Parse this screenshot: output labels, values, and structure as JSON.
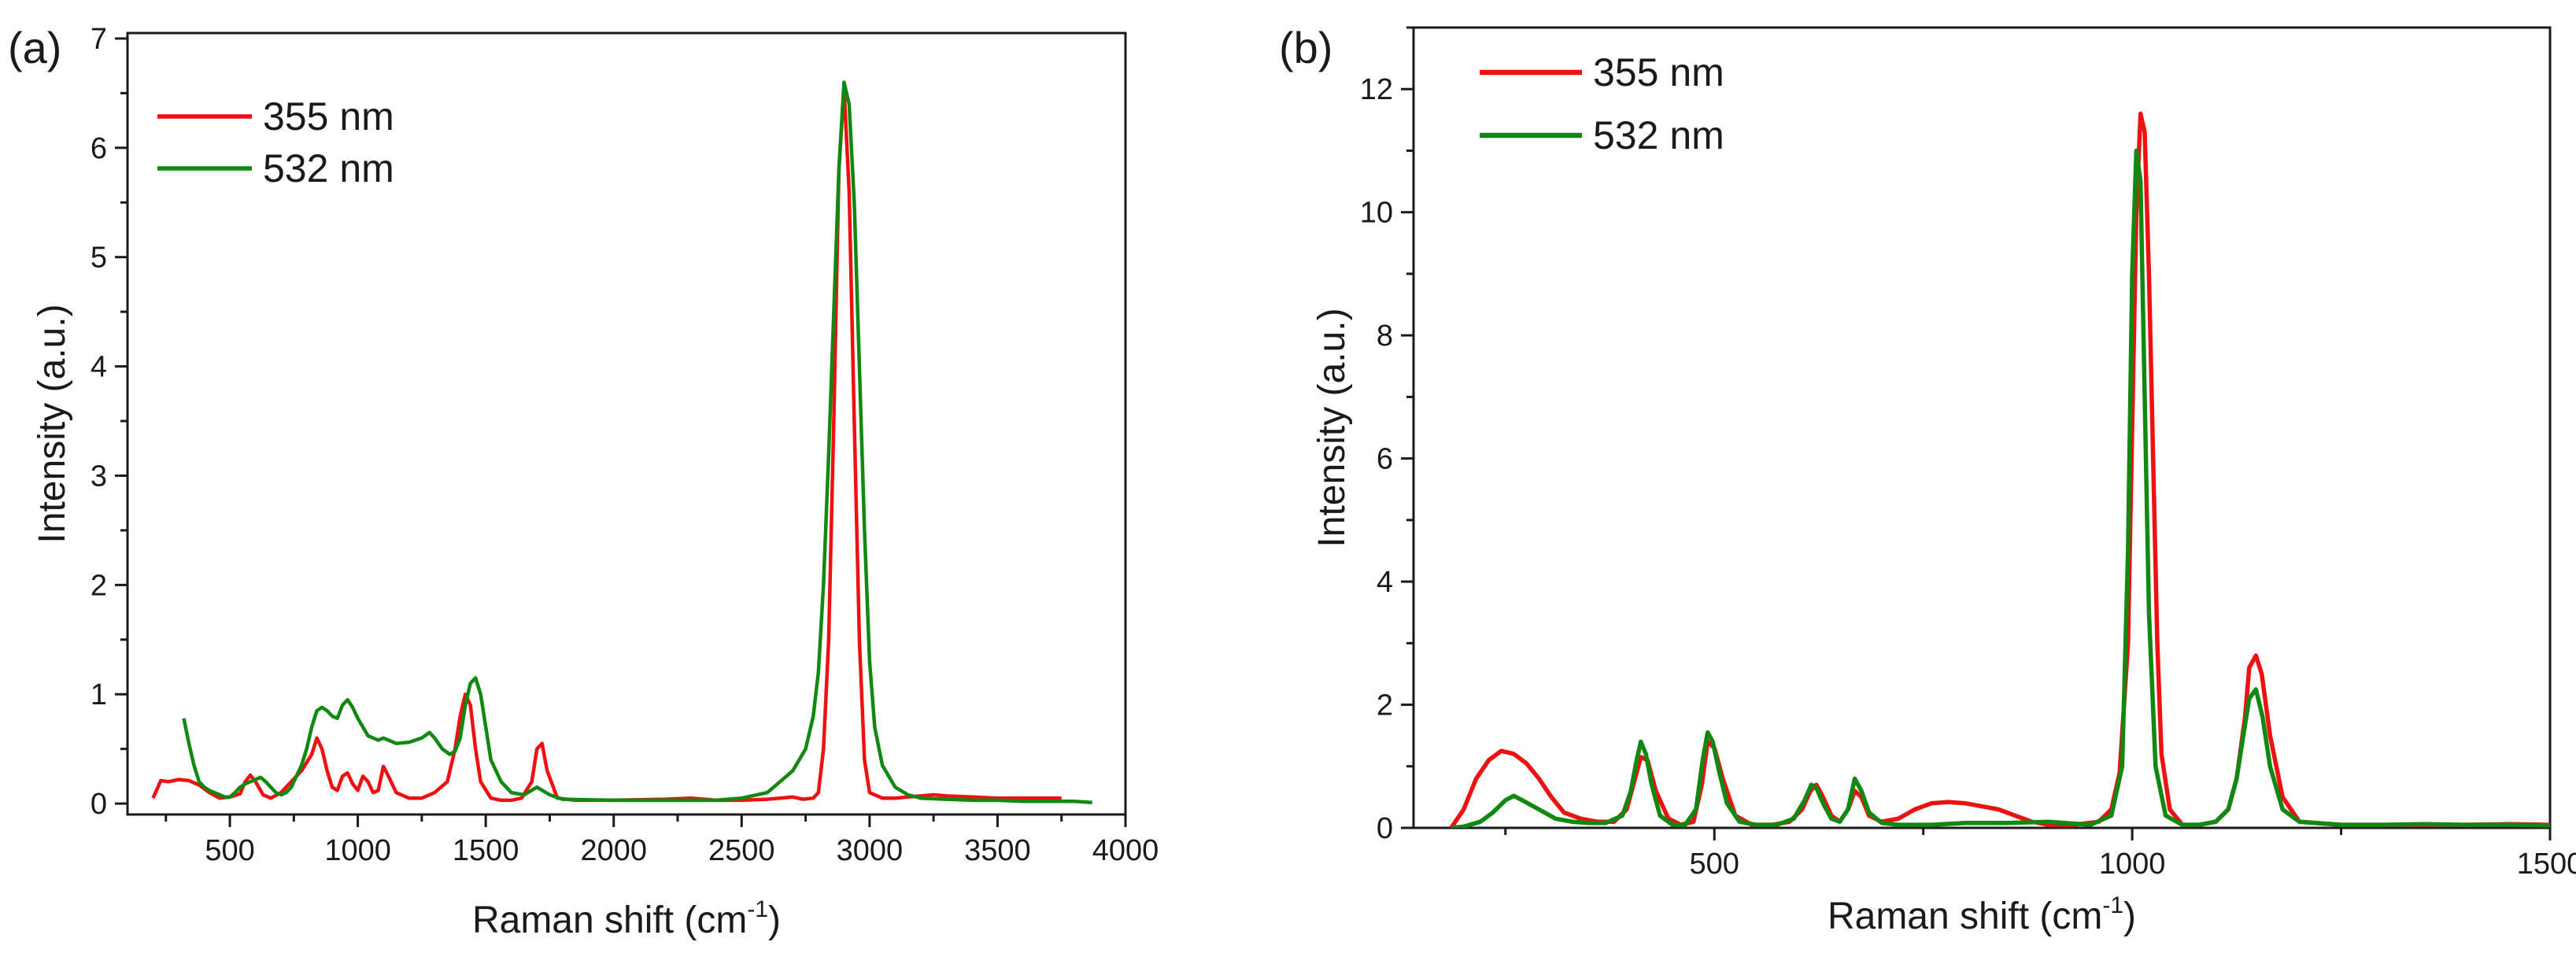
{
  "chart_data": [
    {
      "type": "line",
      "panel_label": "(a)",
      "xlabel": "Raman shift (cm",
      "xlabel_sup": "-1",
      "xlabel_close": ")",
      "ylabel": "Intensity (a.u.)",
      "xlim": [
        100,
        4000
      ],
      "ylim": [
        -0.1,
        7.05
      ],
      "xticks": [
        500,
        1000,
        1500,
        2000,
        2500,
        3000,
        3500,
        4000
      ],
      "yticks": [
        0,
        1,
        2,
        3,
        4,
        5,
        6,
        7
      ],
      "legend_position": "top-left",
      "series": [
        {
          "name": "355 nm",
          "color": "#ee1111",
          "x": [
            200,
            230,
            260,
            300,
            340,
            380,
            420,
            460,
            500,
            540,
            560,
            580,
            600,
            630,
            660,
            700,
            740,
            780,
            820,
            840,
            860,
            880,
            900,
            920,
            940,
            960,
            980,
            1000,
            1020,
            1040,
            1060,
            1080,
            1100,
            1120,
            1150,
            1200,
            1250,
            1300,
            1350,
            1380,
            1400,
            1420,
            1440,
            1460,
            1480,
            1520,
            1560,
            1600,
            1640,
            1680,
            1700,
            1720,
            1740,
            1780,
            1850,
            2000,
            2200,
            2300,
            2400,
            2500,
            2600,
            2650,
            2700,
            2740,
            2780,
            2800,
            2820,
            2840,
            2860,
            2880,
            2900,
            2920,
            2940,
            2960,
            2980,
            3000,
            3050,
            3100,
            3150,
            3200,
            3250,
            3300,
            3400,
            3500,
            3600,
            3700,
            3750
          ],
          "values": [
            0.05,
            0.21,
            0.2,
            0.22,
            0.21,
            0.17,
            0.1,
            0.05,
            0.06,
            0.09,
            0.2,
            0.26,
            0.2,
            0.08,
            0.05,
            0.1,
            0.2,
            0.3,
            0.45,
            0.6,
            0.5,
            0.3,
            0.15,
            0.12,
            0.25,
            0.28,
            0.18,
            0.12,
            0.25,
            0.2,
            0.1,
            0.12,
            0.34,
            0.25,
            0.1,
            0.05,
            0.05,
            0.1,
            0.2,
            0.5,
            0.8,
            1.0,
            0.9,
            0.5,
            0.2,
            0.05,
            0.03,
            0.03,
            0.05,
            0.2,
            0.5,
            0.55,
            0.3,
            0.05,
            0.03,
            0.03,
            0.04,
            0.05,
            0.03,
            0.03,
            0.04,
            0.05,
            0.06,
            0.04,
            0.05,
            0.1,
            0.5,
            1.5,
            3.5,
            5.8,
            6.55,
            5.6,
            3.5,
            1.5,
            0.4,
            0.1,
            0.05,
            0.05,
            0.06,
            0.07,
            0.08,
            0.07,
            0.06,
            0.05,
            0.05,
            0.05,
            0.05
          ]
        },
        {
          "name": "532 nm",
          "color": "#118811",
          "x": [
            320,
            340,
            360,
            380,
            400,
            420,
            440,
            460,
            480,
            500,
            520,
            540,
            560,
            580,
            600,
            620,
            640,
            660,
            680,
            700,
            720,
            740,
            760,
            780,
            800,
            820,
            840,
            860,
            880,
            900,
            920,
            940,
            960,
            980,
            1000,
            1020,
            1040,
            1060,
            1080,
            1100,
            1120,
            1150,
            1200,
            1250,
            1280,
            1300,
            1330,
            1360,
            1380,
            1400,
            1420,
            1440,
            1460,
            1480,
            1500,
            1520,
            1560,
            1600,
            1650,
            1700,
            1750,
            1800,
            2000,
            2200,
            2400,
            2500,
            2600,
            2650,
            2700,
            2750,
            2780,
            2800,
            2820,
            2840,
            2860,
            2880,
            2900,
            2920,
            2940,
            2960,
            2980,
            3000,
            3020,
            3050,
            3100,
            3150,
            3200,
            3300,
            3400,
            3500,
            3600,
            3700,
            3800,
            3870
          ],
          "values": [
            0.78,
            0.55,
            0.35,
            0.2,
            0.15,
            0.12,
            0.1,
            0.08,
            0.06,
            0.06,
            0.1,
            0.15,
            0.18,
            0.2,
            0.22,
            0.24,
            0.2,
            0.15,
            0.1,
            0.08,
            0.1,
            0.15,
            0.25,
            0.35,
            0.5,
            0.7,
            0.85,
            0.88,
            0.85,
            0.8,
            0.78,
            0.9,
            0.95,
            0.88,
            0.78,
            0.7,
            0.62,
            0.6,
            0.58,
            0.6,
            0.58,
            0.55,
            0.56,
            0.6,
            0.65,
            0.6,
            0.5,
            0.45,
            0.48,
            0.6,
            0.9,
            1.1,
            1.15,
            1.0,
            0.7,
            0.4,
            0.2,
            0.1,
            0.08,
            0.15,
            0.08,
            0.04,
            0.03,
            0.03,
            0.03,
            0.05,
            0.1,
            0.2,
            0.3,
            0.5,
            0.8,
            1.2,
            2.0,
            3.2,
            4.5,
            5.8,
            6.6,
            6.4,
            5.5,
            4.0,
            2.5,
            1.3,
            0.7,
            0.35,
            0.15,
            0.08,
            0.05,
            0.04,
            0.03,
            0.03,
            0.02,
            0.02,
            0.02,
            0.01
          ]
        }
      ]
    },
    {
      "type": "line",
      "panel_label": "(b)",
      "xlabel": "Raman shift (cm",
      "xlabel_sup": "-1",
      "xlabel_close": ")",
      "ylabel": "Intensity (a.u.)",
      "xlim": [
        140,
        1500
      ],
      "ylim": [
        0,
        13
      ],
      "xticks": [
        500,
        1000,
        1500
      ],
      "yticks": [
        0,
        2,
        4,
        6,
        8,
        10,
        12
      ],
      "legend_position": "top-left",
      "series": [
        {
          "name": "355 nm",
          "color": "#ee1111",
          "x": [
            185,
            200,
            215,
            230,
            245,
            260,
            275,
            290,
            305,
            320,
            340,
            360,
            380,
            395,
            405,
            412,
            420,
            430,
            445,
            460,
            475,
            485,
            492,
            500,
            510,
            525,
            545,
            570,
            590,
            605,
            615,
            622,
            630,
            640,
            650,
            660,
            668,
            676,
            685,
            700,
            720,
            740,
            760,
            780,
            800,
            820,
            840,
            860,
            880,
            900,
            930,
            960,
            975,
            985,
            995,
            1000,
            1005,
            1010,
            1015,
            1020,
            1025,
            1030,
            1035,
            1045,
            1060,
            1080,
            1100,
            1115,
            1125,
            1135,
            1140,
            1148,
            1155,
            1165,
            1180,
            1200,
            1250,
            1300,
            1350,
            1400,
            1450,
            1500
          ],
          "values": [
            0.0,
            0.3,
            0.8,
            1.1,
            1.25,
            1.2,
            1.05,
            0.8,
            0.5,
            0.25,
            0.15,
            0.1,
            0.1,
            0.3,
            0.8,
            1.15,
            1.1,
            0.6,
            0.15,
            0.05,
            0.1,
            0.7,
            1.4,
            1.3,
            0.8,
            0.2,
            0.05,
            0.05,
            0.1,
            0.3,
            0.6,
            0.7,
            0.5,
            0.2,
            0.1,
            0.3,
            0.6,
            0.5,
            0.2,
            0.1,
            0.15,
            0.3,
            0.4,
            0.42,
            0.4,
            0.35,
            0.3,
            0.2,
            0.1,
            0.05,
            0.05,
            0.1,
            0.3,
            0.9,
            3.0,
            6.5,
            10.0,
            11.6,
            11.3,
            9.0,
            6.0,
            3.0,
            1.2,
            0.3,
            0.05,
            0.05,
            0.1,
            0.3,
            0.8,
            1.8,
            2.6,
            2.8,
            2.5,
            1.5,
            0.5,
            0.1,
            0.05,
            0.05,
            0.05,
            0.05,
            0.06,
            0.05
          ]
        },
        {
          "name": "532 nm",
          "color": "#118811",
          "x": [
            185,
            200,
            220,
            235,
            250,
            260,
            270,
            290,
            310,
            330,
            350,
            370,
            390,
            400,
            407,
            412,
            418,
            425,
            435,
            450,
            465,
            478,
            486,
            492,
            498,
            506,
            515,
            530,
            550,
            575,
            595,
            608,
            616,
            622,
            630,
            640,
            650,
            660,
            668,
            676,
            685,
            700,
            720,
            760,
            800,
            850,
            900,
            950,
            975,
            988,
            995,
            1000,
            1005,
            1010,
            1015,
            1020,
            1028,
            1040,
            1060,
            1080,
            1100,
            1115,
            1125,
            1133,
            1140,
            1148,
            1156,
            1165,
            1180,
            1200,
            1250,
            1300,
            1350,
            1400,
            1450,
            1500
          ],
          "values": [
            0.0,
            0.02,
            0.1,
            0.25,
            0.45,
            0.52,
            0.45,
            0.3,
            0.15,
            0.1,
            0.08,
            0.08,
            0.2,
            0.6,
            1.1,
            1.4,
            1.2,
            0.7,
            0.2,
            0.05,
            0.05,
            0.3,
            1.1,
            1.55,
            1.4,
            0.9,
            0.4,
            0.1,
            0.05,
            0.05,
            0.15,
            0.45,
            0.7,
            0.65,
            0.4,
            0.15,
            0.1,
            0.3,
            0.8,
            0.6,
            0.25,
            0.08,
            0.05,
            0.05,
            0.08,
            0.08,
            0.1,
            0.05,
            0.2,
            1.0,
            4.5,
            9.0,
            11.0,
            10.5,
            7.0,
            3.5,
            1.0,
            0.2,
            0.05,
            0.05,
            0.1,
            0.3,
            0.8,
            1.5,
            2.1,
            2.25,
            1.8,
            1.0,
            0.3,
            0.1,
            0.05,
            0.05,
            0.06,
            0.05,
            0.05,
            0.04
          ]
        }
      ]
    }
  ]
}
